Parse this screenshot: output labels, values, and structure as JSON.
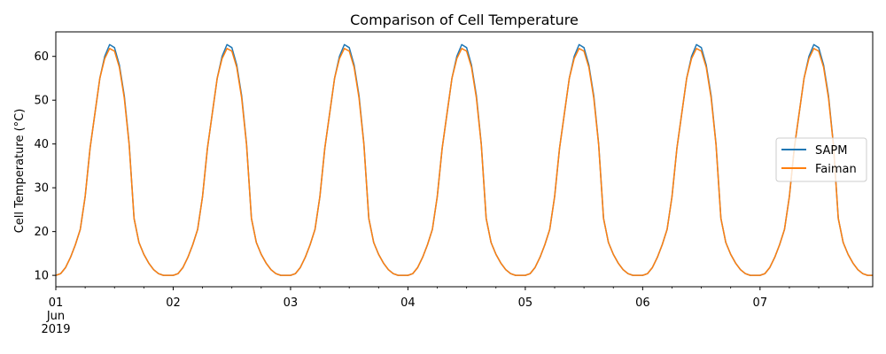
{
  "chart_data": {
    "type": "line",
    "title": "Comparison of Cell Temperature",
    "xlabel": "",
    "ylabel": "Cell Temperature (°C)",
    "ylim": [
      7.4,
      65.6
    ],
    "xlim": [
      0,
      6.96
    ],
    "yticks": [
      10,
      20,
      30,
      40,
      50,
      60
    ],
    "xticks": [
      {
        "x": 0,
        "label": [
          "01",
          "Jun",
          "2019"
        ]
      },
      {
        "x": 1,
        "label": [
          "02"
        ]
      },
      {
        "x": 2,
        "label": [
          "03"
        ]
      },
      {
        "x": 3,
        "label": [
          "04"
        ]
      },
      {
        "x": 4,
        "label": [
          "05"
        ]
      },
      {
        "x": 5,
        "label": [
          "06"
        ]
      },
      {
        "x": 6,
        "label": [
          "07"
        ]
      }
    ],
    "grid": false,
    "legend_position": "center-right",
    "daily_profile_hours": [
      0,
      1,
      2,
      3,
      4,
      5,
      6,
      7,
      8,
      9,
      10,
      11,
      12,
      13,
      14,
      15,
      16,
      17,
      18,
      19,
      20,
      21,
      22,
      23
    ],
    "days": 7,
    "series": [
      {
        "name": "SAPM",
        "color": "#1f77b4",
        "daily_values": [
          10.0,
          10.4,
          11.8,
          14.1,
          17.0,
          20.5,
          28.0,
          39.0,
          47.0,
          55.0,
          60.0,
          62.7,
          62.0,
          58.0,
          51.0,
          40.0,
          23.0,
          17.5,
          14.8,
          12.8,
          11.3,
          10.4,
          10.0,
          10.0
        ]
      },
      {
        "name": "Faiman",
        "color": "#ff7f0e",
        "daily_values": [
          10.0,
          10.4,
          11.8,
          14.1,
          17.0,
          20.5,
          28.0,
          39.0,
          47.0,
          55.0,
          59.5,
          61.8,
          61.2,
          57.5,
          50.5,
          39.8,
          23.0,
          17.5,
          14.8,
          12.8,
          11.3,
          10.4,
          10.0,
          10.0
        ]
      }
    ]
  }
}
